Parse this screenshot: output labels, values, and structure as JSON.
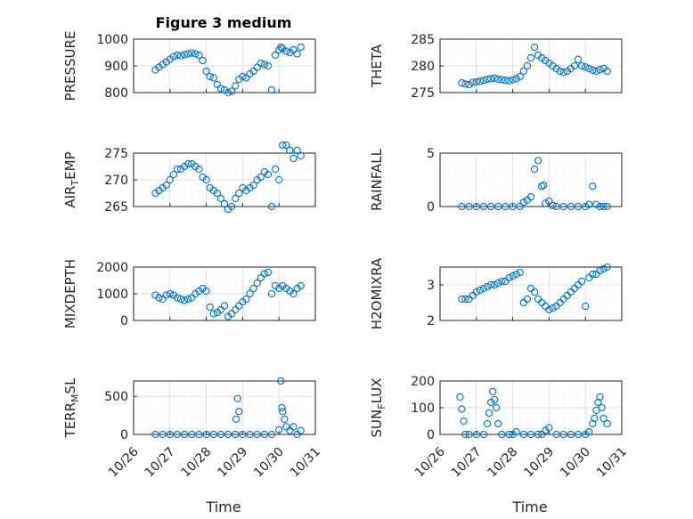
{
  "title": "Figure 3 medium",
  "xlabel": "Time",
  "chart_data": [
    {
      "type": "scatter",
      "ylabel": "PRESSURE",
      "ylim": [
        800,
        1000
      ],
      "yticks": [
        "800",
        "900",
        "1000"
      ],
      "xlim": [
        0,
        5
      ],
      "xticks": [
        "10/26",
        "10/27",
        "10/28",
        "10/29",
        "10/30",
        "10/31"
      ],
      "x": [
        0.6,
        0.7,
        0.8,
        0.9,
        1.0,
        1.1,
        1.2,
        1.3,
        1.4,
        1.5,
        1.6,
        1.7,
        1.8,
        1.9,
        2.0,
        2.1,
        2.2,
        2.3,
        2.4,
        2.5,
        2.6,
        2.7,
        2.8,
        2.9,
        3.0,
        3.1,
        3.2,
        3.3,
        3.4,
        3.5,
        3.6,
        3.7,
        3.8,
        3.9,
        4.0,
        4.05,
        4.1,
        4.2,
        4.3,
        4.4,
        4.5,
        4.6
      ],
      "y": [
        885,
        895,
        905,
        915,
        925,
        935,
        940,
        938,
        942,
        945,
        948,
        945,
        940,
        920,
        880,
        860,
        855,
        830,
        815,
        810,
        800,
        805,
        825,
        850,
        860,
        855,
        870,
        880,
        895,
        910,
        905,
        900,
        810,
        940,
        960,
        970,
        965,
        955,
        950,
        960,
        945,
        970
      ]
    },
    {
      "type": "scatter",
      "ylabel": "THETA",
      "ylim": [
        275,
        285
      ],
      "yticks": [
        "275",
        "280",
        "285"
      ],
      "xlim": [
        0,
        5
      ],
      "xticks": [
        "10/26",
        "10/27",
        "10/28",
        "10/29",
        "10/30",
        "10/31"
      ],
      "x": [
        0.6,
        0.7,
        0.8,
        0.9,
        1.0,
        1.1,
        1.2,
        1.3,
        1.4,
        1.5,
        1.6,
        1.7,
        1.8,
        1.9,
        2.0,
        2.1,
        2.2,
        2.3,
        2.4,
        2.5,
        2.6,
        2.7,
        2.8,
        2.9,
        3.0,
        3.1,
        3.2,
        3.3,
        3.4,
        3.5,
        3.6,
        3.7,
        3.8,
        3.9,
        4.0,
        4.1,
        4.2,
        4.3,
        4.4,
        4.5,
        4.6
      ],
      "y": [
        276.8,
        276.6,
        276.5,
        276.9,
        277.0,
        277.1,
        277.3,
        277.5,
        277.6,
        277.7,
        277.5,
        277.4,
        277.3,
        277.2,
        277.4,
        277.6,
        278.0,
        279.0,
        280.0,
        281.5,
        283.5,
        282.0,
        281.5,
        281.0,
        280.5,
        280.0,
        279.5,
        279.0,
        278.8,
        279.0,
        279.5,
        280.0,
        281.2,
        280.0,
        279.8,
        279.5,
        279.2,
        279.0,
        279.3,
        279.5,
        279.0
      ]
    },
    {
      "type": "scatter",
      "ylabel": "AIR_TEMP",
      "ylim": [
        265,
        275
      ],
      "yticks": [
        "265",
        "270",
        "275"
      ],
      "xlim": [
        0,
        5
      ],
      "xticks": [
        "10/26",
        "10/27",
        "10/28",
        "10/29",
        "10/30",
        "10/31"
      ],
      "x": [
        0.6,
        0.7,
        0.8,
        0.9,
        1.0,
        1.1,
        1.2,
        1.3,
        1.4,
        1.5,
        1.6,
        1.7,
        1.8,
        1.9,
        2.0,
        2.1,
        2.2,
        2.3,
        2.4,
        2.5,
        2.6,
        2.7,
        2.8,
        2.9,
        3.0,
        3.1,
        3.2,
        3.3,
        3.4,
        3.5,
        3.6,
        3.7,
        3.8,
        3.9,
        4.0,
        4.1,
        4.2,
        4.3,
        4.4,
        4.5,
        4.6
      ],
      "y": [
        267.5,
        268.0,
        268.5,
        269.0,
        270.0,
        271.0,
        272.0,
        272.0,
        272.5,
        273.0,
        273.0,
        272.5,
        272.0,
        270.5,
        270.0,
        268.5,
        268.0,
        267.5,
        266.5,
        265.5,
        264.5,
        265.0,
        266.5,
        267.5,
        268.5,
        268.0,
        268.5,
        269.0,
        270.0,
        270.5,
        271.5,
        271.0,
        265.0,
        272.0,
        270.0,
        276.5,
        276.5,
        275.5,
        274.0,
        275.5,
        274.5
      ]
    },
    {
      "type": "scatter",
      "ylabel": "RAINFALL",
      "ylim": [
        0,
        5
      ],
      "yticks": [
        "0",
        "5"
      ],
      "xlim": [
        0,
        5
      ],
      "xticks": [
        "10/26",
        "10/27",
        "10/28",
        "10/29",
        "10/30",
        "10/31"
      ],
      "x": [
        0.6,
        0.8,
        1.0,
        1.2,
        1.4,
        1.6,
        1.8,
        2.0,
        2.2,
        2.3,
        2.4,
        2.5,
        2.6,
        2.7,
        2.8,
        2.85,
        2.9,
        3.0,
        3.1,
        3.2,
        3.4,
        3.6,
        3.8,
        4.0,
        4.1,
        4.2,
        4.3,
        4.4,
        4.5,
        4.6
      ],
      "y": [
        0,
        0,
        0,
        0,
        0,
        0,
        0,
        0,
        0,
        0.4,
        0.6,
        0.9,
        3.5,
        4.3,
        1.9,
        2.0,
        0.3,
        0.5,
        0.1,
        0,
        0,
        0,
        0,
        0,
        0.2,
        1.9,
        0.2,
        0,
        0,
        0
      ]
    },
    {
      "type": "scatter",
      "ylabel": "MIXDEPTH",
      "ylim": [
        0,
        2000
      ],
      "yticks": [
        "0",
        "1000",
        "2000"
      ],
      "xlim": [
        0,
        5
      ],
      "xticks": [
        "10/26",
        "10/27",
        "10/28",
        "10/29",
        "10/30",
        "10/31"
      ],
      "x": [
        0.6,
        0.7,
        0.8,
        0.9,
        1.0,
        1.1,
        1.2,
        1.3,
        1.4,
        1.5,
        1.6,
        1.7,
        1.8,
        1.9,
        2.0,
        2.1,
        2.2,
        2.3,
        2.4,
        2.5,
        2.6,
        2.7,
        2.8,
        2.9,
        3.0,
        3.1,
        3.2,
        3.3,
        3.4,
        3.5,
        3.6,
        3.7,
        3.8,
        3.9,
        4.0,
        4.1,
        4.2,
        4.3,
        4.4,
        4.5,
        4.6
      ],
      "y": [
        950,
        850,
        800,
        950,
        1000,
        950,
        850,
        800,
        750,
        800,
        850,
        1000,
        1100,
        1200,
        1100,
        500,
        250,
        300,
        400,
        550,
        150,
        250,
        400,
        550,
        700,
        800,
        1000,
        1200,
        1400,
        1600,
        1750,
        1800,
        1000,
        1300,
        1200,
        1300,
        1200,
        1100,
        1000,
        1200,
        1300
      ]
    },
    {
      "type": "scatter",
      "ylabel": "H2OMIXRA",
      "ylim": [
        2,
        3.5
      ],
      "yticks": [
        "2",
        "3"
      ],
      "xlim": [
        0,
        5
      ],
      "xticks": [
        "10/26",
        "10/27",
        "10/28",
        "10/29",
        "10/30",
        "10/31"
      ],
      "x": [
        0.6,
        0.7,
        0.8,
        0.9,
        1.0,
        1.1,
        1.2,
        1.3,
        1.4,
        1.5,
        1.6,
        1.7,
        1.8,
        1.9,
        2.0,
        2.1,
        2.2,
        2.3,
        2.4,
        2.5,
        2.6,
        2.7,
        2.8,
        2.9,
        3.0,
        3.1,
        3.2,
        3.3,
        3.4,
        3.5,
        3.6,
        3.7,
        3.8,
        3.9,
        4.0,
        4.1,
        4.2,
        4.3,
        4.4,
        4.5,
        4.6
      ],
      "y": [
        2.6,
        2.6,
        2.6,
        2.7,
        2.8,
        2.85,
        2.9,
        2.95,
        3.0,
        3.0,
        3.05,
        3.1,
        3.1,
        3.2,
        3.25,
        3.3,
        3.35,
        2.5,
        2.6,
        2.9,
        2.8,
        2.6,
        2.5,
        2.4,
        2.3,
        2.35,
        2.4,
        2.5,
        2.6,
        2.7,
        2.8,
        2.9,
        3.0,
        3.1,
        2.4,
        3.2,
        3.3,
        3.3,
        3.4,
        3.45,
        3.5
      ]
    },
    {
      "type": "scatter",
      "ylabel": "TERR_MSL",
      "ylim": [
        0,
        700
      ],
      "yticks": [
        "0",
        "500"
      ],
      "xlim": [
        0,
        5
      ],
      "xticks": [
        "10/26",
        "10/27",
        "10/28",
        "10/29",
        "10/30",
        "10/31"
      ],
      "x": [
        0.6,
        0.8,
        1.0,
        1.2,
        1.4,
        1.6,
        1.8,
        2.0,
        2.2,
        2.4,
        2.6,
        2.8,
        2.82,
        2.86,
        2.9,
        3.0,
        3.2,
        3.4,
        3.6,
        3.8,
        4.0,
        4.05,
        4.08,
        4.1,
        4.15,
        4.2,
        4.3,
        4.4,
        4.5,
        4.6
      ],
      "y": [
        0,
        0,
        0,
        0,
        0,
        0,
        0,
        0,
        0,
        0,
        0,
        0,
        200,
        470,
        300,
        0,
        0,
        0,
        0,
        0,
        60,
        700,
        350,
        300,
        200,
        100,
        50,
        100,
        0,
        50
      ]
    },
    {
      "type": "scatter",
      "ylabel": "SUN_FLUX",
      "ylim": [
        0,
        200
      ],
      "yticks": [
        "0",
        "100",
        "200"
      ],
      "xlim": [
        0,
        5
      ],
      "xticks": [
        "10/26",
        "10/27",
        "10/28",
        "10/29",
        "10/30",
        "10/31"
      ],
      "x": [
        0.55,
        0.6,
        0.65,
        0.7,
        0.8,
        1.0,
        1.2,
        1.3,
        1.35,
        1.4,
        1.45,
        1.5,
        1.55,
        1.6,
        1.7,
        1.9,
        2.0,
        2.1,
        2.3,
        2.5,
        2.7,
        2.8,
        2.9,
        3.0,
        3.2,
        3.4,
        3.6,
        3.8,
        4.0,
        4.1,
        4.2,
        4.25,
        4.3,
        4.35,
        4.4,
        4.45,
        4.5,
        4.6
      ],
      "y": [
        140,
        95,
        50,
        0,
        0,
        0,
        0,
        40,
        80,
        120,
        160,
        130,
        100,
        40,
        0,
        0,
        0,
        10,
        0,
        0,
        0,
        0,
        15,
        25,
        0,
        0,
        0,
        0,
        0,
        10,
        40,
        60,
        90,
        120,
        140,
        100,
        60,
        40
      ]
    }
  ]
}
